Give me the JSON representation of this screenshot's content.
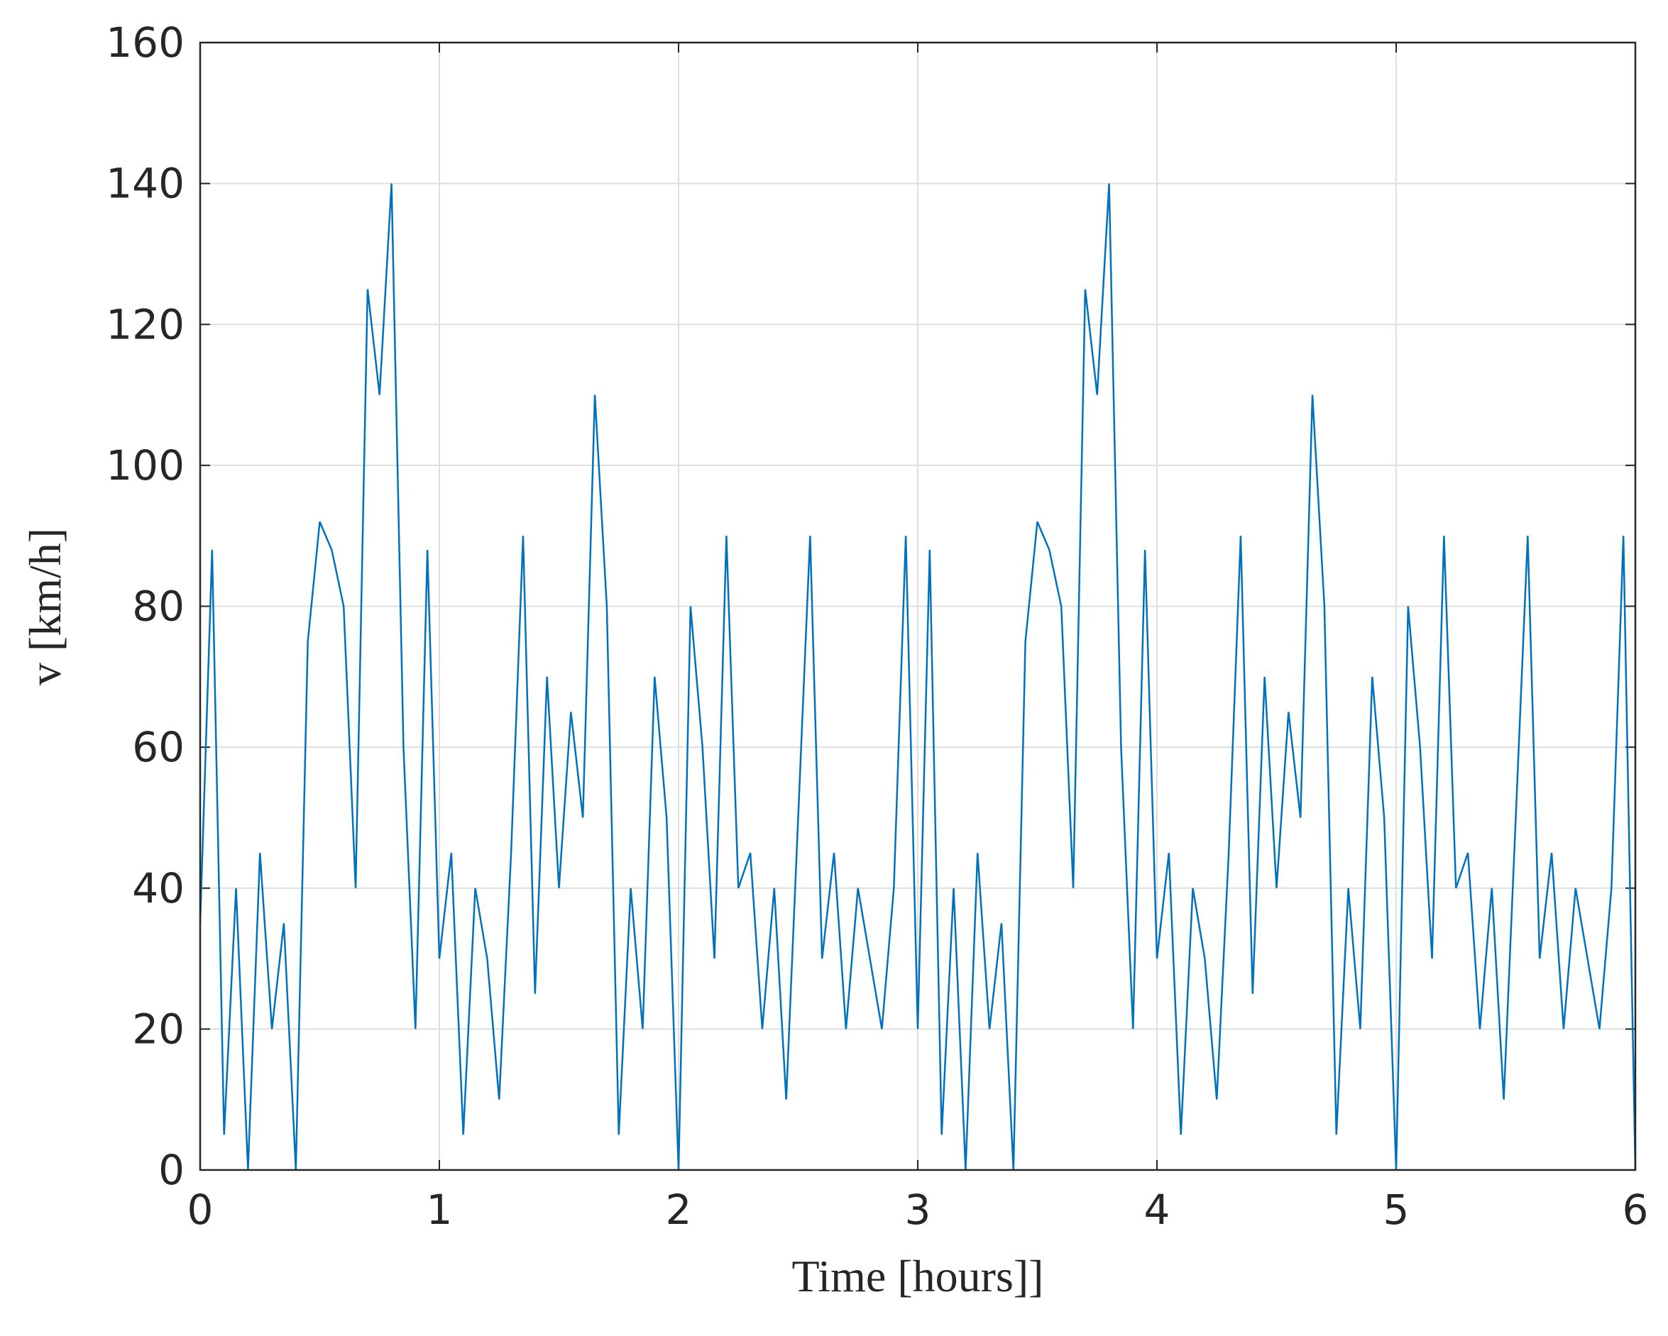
{
  "chart_data": {
    "type": "line",
    "xlabel": "Time [hours]]",
    "ylabel": "v [km/h]",
    "xlim": [
      0,
      6
    ],
    "ylim": [
      0,
      160
    ],
    "xticks": [
      0,
      1,
      2,
      3,
      4,
      5,
      6
    ],
    "yticks": [
      0,
      20,
      40,
      60,
      80,
      100,
      120,
      140,
      160
    ],
    "grid": true,
    "series": [
      {
        "name": "v",
        "color": "#0072bd",
        "x": [
          0,
          0.05,
          0.1,
          0.15,
          0.2,
          0.25,
          0.3,
          0.35,
          0.4,
          0.45,
          0.5,
          0.55,
          0.6,
          0.65,
          0.7,
          0.75,
          0.8,
          0.85,
          0.9,
          0.95,
          1,
          1.05,
          1.1,
          1.15,
          1.2,
          1.25,
          1.3,
          1.35,
          1.4,
          1.45,
          1.5,
          1.55,
          1.6,
          1.65,
          1.7,
          1.75,
          1.8,
          1.85,
          1.9,
          1.95,
          2,
          2.05,
          2.1,
          2.15,
          2.2,
          2.25,
          2.3,
          2.35,
          2.4,
          2.45,
          2.5,
          2.55,
          2.6,
          2.65,
          2.7,
          2.75,
          2.8,
          2.85,
          2.9,
          2.95,
          3,
          3.05,
          3.1,
          3.15,
          3.2,
          3.25,
          3.3,
          3.35,
          3.4,
          3.45,
          3.5,
          3.55,
          3.6,
          3.65,
          3.7,
          3.75,
          3.8,
          3.85,
          3.9,
          3.95,
          4,
          4.05,
          4.1,
          4.15,
          4.2,
          4.25,
          4.3,
          4.35,
          4.4,
          4.45,
          4.5,
          4.55,
          4.6,
          4.65,
          4.7,
          4.75,
          4.8,
          4.85,
          4.9,
          4.95,
          5,
          5.05,
          5.1,
          5.15,
          5.2,
          5.25,
          5.3,
          5.35,
          5.4,
          5.45,
          5.5,
          5.55,
          5.6,
          5.65,
          5.7,
          5.75,
          5.8,
          5.85,
          5.9,
          5.95,
          6
        ],
        "values": [
          35,
          88,
          5,
          40,
          0,
          45,
          20,
          35,
          0,
          75,
          92,
          88,
          80,
          40,
          125,
          110,
          140,
          60,
          20,
          88,
          30,
          45,
          5,
          40,
          30,
          10,
          45,
          90,
          25,
          70,
          40,
          65,
          50,
          110,
          80,
          5,
          40,
          20,
          70,
          50,
          0,
          80,
          60,
          30,
          90,
          40,
          45,
          20,
          40,
          10,
          50,
          90,
          30,
          45,
          20,
          40,
          30,
          20,
          40,
          90,
          20,
          88,
          5,
          40,
          0,
          45,
          20,
          35,
          0,
          75,
          92,
          88,
          80,
          40,
          125,
          110,
          140,
          60,
          20,
          88,
          30,
          45,
          5,
          40,
          30,
          10,
          45,
          90,
          25,
          70,
          40,
          65,
          50,
          110,
          80,
          5,
          40,
          20,
          70,
          50,
          0,
          80,
          60,
          30,
          90,
          40,
          45,
          20,
          40,
          10,
          50,
          90,
          30,
          45,
          20,
          40,
          30,
          20,
          40,
          90,
          0
        ]
      }
    ]
  }
}
